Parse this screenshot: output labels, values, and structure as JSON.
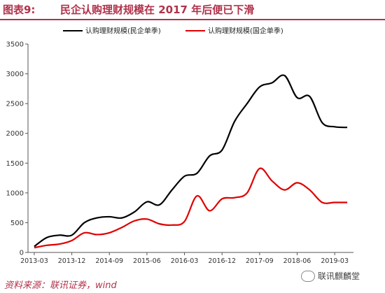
{
  "header": {
    "figure_label": "图表9:",
    "title": "民企认购理财规模在 2017 年后便已下滑"
  },
  "footer": {
    "source": "资料来源：联讯证券，wind",
    "watermark": "联讯麒麟堂"
  },
  "chart_data": {
    "type": "line",
    "title": "",
    "xlabel": "",
    "ylabel": "",
    "ylim": [
      0,
      3500
    ],
    "yticks": [
      "0",
      "500",
      "1000",
      "1500",
      "2000",
      "2500",
      "3000",
      "3500"
    ],
    "xtick_labels": [
      "2013-03",
      "2013-12",
      "2014-09",
      "2015-06",
      "2016-03",
      "2016-12",
      "2017-09",
      "2018-06",
      "2019-03"
    ],
    "grid": false,
    "legend_position": "top",
    "x": [
      "2013-03",
      "2013-06",
      "2013-09",
      "2013-12",
      "2014-03",
      "2014-06",
      "2014-09",
      "2014-12",
      "2015-03",
      "2015-06",
      "2015-09",
      "2015-12",
      "2016-03",
      "2016-06",
      "2016-09",
      "2016-12",
      "2017-03",
      "2017-06",
      "2017-09",
      "2017-12",
      "2018-03",
      "2018-06",
      "2018-09",
      "2018-12",
      "2019-03",
      "2019-06"
    ],
    "series": [
      {
        "name": "认购理财规模(民企单季)",
        "color": "#000000",
        "values": [
          100,
          250,
          290,
          290,
          500,
          580,
          600,
          580,
          680,
          850,
          800,
          1050,
          1280,
          1330,
          1620,
          1720,
          2200,
          2500,
          2780,
          2850,
          2970,
          2600,
          2620,
          2180,
          2110,
          2100
        ]
      },
      {
        "name": "认购理财规模(国企单季)",
        "color": "#e00000",
        "values": [
          80,
          120,
          140,
          200,
          330,
          300,
          330,
          420,
          530,
          560,
          480,
          460,
          520,
          950,
          700,
          900,
          920,
          1000,
          1410,
          1200,
          1050,
          1170,
          1050,
          840,
          840,
          840
        ]
      }
    ]
  }
}
